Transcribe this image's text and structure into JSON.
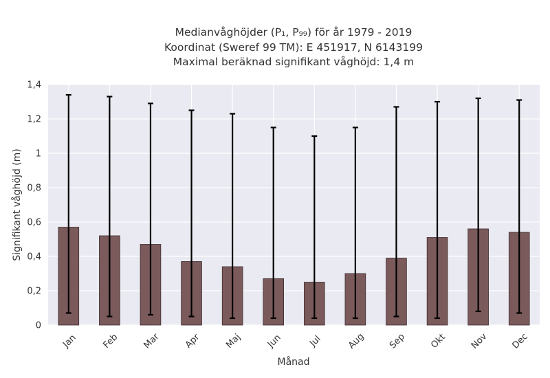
{
  "chart_data": {
    "type": "bar",
    "title_lines": [
      "Medianvåghöjder (P₁, P₉₉) för år 1979 - 2019",
      "Koordinat (Sweref 99 TM): E 451917, N 6143199",
      "Maximal beräknad signifikant våghöjd: 1,4 m"
    ],
    "xlabel": "Månad",
    "ylabel": "Signifikant våghöjd (m)",
    "categories": [
      "Jan",
      "Feb",
      "Mar",
      "Apr",
      "Maj",
      "Jun",
      "Jul",
      "Aug",
      "Sep",
      "Okt",
      "Nov",
      "Dec"
    ],
    "values": [
      0.57,
      0.52,
      0.47,
      0.37,
      0.34,
      0.27,
      0.25,
      0.3,
      0.39,
      0.51,
      0.56,
      0.54
    ],
    "error_low": [
      0.07,
      0.05,
      0.06,
      0.05,
      0.04,
      0.04,
      0.04,
      0.04,
      0.05,
      0.04,
      0.08,
      0.07
    ],
    "error_high": [
      1.34,
      1.33,
      1.29,
      1.25,
      1.23,
      1.15,
      1.1,
      1.15,
      1.27,
      1.3,
      1.32,
      1.31
    ],
    "ylim": [
      0,
      1.4
    ],
    "yticks": [
      0,
      0.2,
      0.4,
      0.6,
      0.8,
      1.0,
      1.2,
      1.4
    ],
    "ytick_labels": [
      "0",
      "0,2",
      "0,4",
      "0,6",
      "0,8",
      "1",
      "1,2",
      "1,4"
    ],
    "grid": true,
    "colors": {
      "bar": "#7b5a5c",
      "bar_edge": "#3d2c2d",
      "error_bar": "#000000",
      "plot_background": "#eaeaf2",
      "grid": "#ffffff"
    }
  }
}
